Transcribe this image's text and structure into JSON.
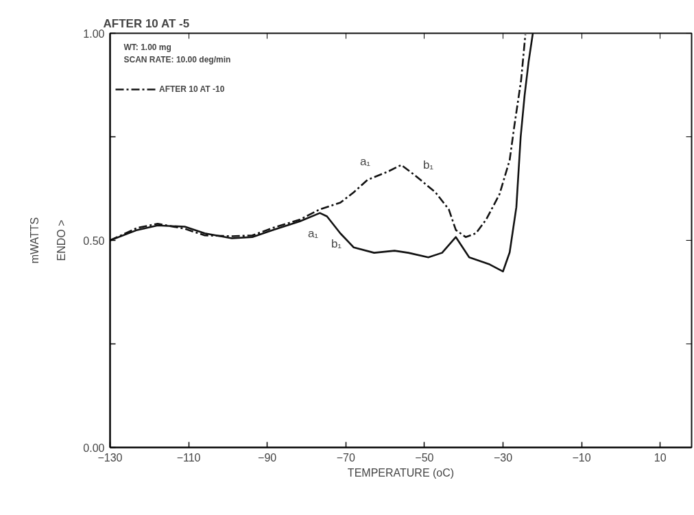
{
  "chart_data": {
    "type": "line",
    "title": "AFTER 10 AT -5",
    "xlabel": "TEMPERATURE (oC)",
    "ylabel": "mWATTS",
    "annotations": [
      "ENDO >",
      "WT: 1.00 mg",
      "SCAN RATE: 10.00 deg/min",
      "a₁",
      "b₁",
      "a₁",
      "b₁"
    ],
    "xlim": [
      -130,
      18
    ],
    "ylim": [
      0,
      1
    ],
    "xticks": [
      -130,
      -110,
      -90,
      -70,
      -50,
      -30,
      -10,
      10
    ],
    "yticks": [
      {
        "value": 0,
        "label": "0.00"
      },
      {
        "value": 0.25,
        "label": null
      },
      {
        "value": 0.5,
        "label": "0.50"
      },
      {
        "value": 0.75,
        "label": null
      },
      {
        "value": 1,
        "label": "1.00"
      }
    ],
    "grid": false,
    "legend": "top left",
    "marker": "none",
    "series": [
      {
        "color": "#111111",
        "line_style": "solid",
        "x": [
          -130,
          -123.1,
          -117.9,
          -111,
          -105.9,
          -99,
          -93.8,
          -88.6,
          -81.7,
          -76.6,
          -74.8,
          -71.4,
          -68,
          -62.8,
          -57.6,
          -54.1,
          -49,
          -45.5,
          -42,
          -38.6,
          -33.4,
          -30,
          -28.3,
          -26.6,
          -25.5,
          -24.5,
          -23.5,
          -22.4
        ],
        "values": [
          0.5,
          0.525,
          0.536,
          0.533,
          0.517,
          0.505,
          0.508,
          0.525,
          0.546,
          0.566,
          0.558,
          0.517,
          0.483,
          0.47,
          0.475,
          0.47,
          0.459,
          0.47,
          0.508,
          0.459,
          0.442,
          0.425,
          0.471,
          0.58,
          0.75,
          0.85,
          0.93,
          1.0
        ]
      },
      {
        "name": "AFTER 10 AT -10",
        "color": "#111111",
        "line_style": "dashdot",
        "x": [
          -130,
          -123.1,
          -117.9,
          -111,
          -105.9,
          -99,
          -93.8,
          -88.6,
          -81.7,
          -76.6,
          -71.4,
          -68,
          -64.5,
          -59.3,
          -55.9,
          -52.4,
          -47.2,
          -43.8,
          -42,
          -39.5,
          -36.9,
          -34.3,
          -30.9,
          -28.3,
          -27.1,
          -25.4,
          -24.3
        ],
        "values": [
          0.5,
          0.53,
          0.54,
          0.528,
          0.512,
          0.51,
          0.512,
          0.53,
          0.55,
          0.575,
          0.591,
          0.616,
          0.646,
          0.666,
          0.682,
          0.657,
          0.616,
          0.575,
          0.525,
          0.508,
          0.517,
          0.55,
          0.611,
          0.694,
          0.777,
          0.886,
          0.997
        ]
      }
    ]
  }
}
